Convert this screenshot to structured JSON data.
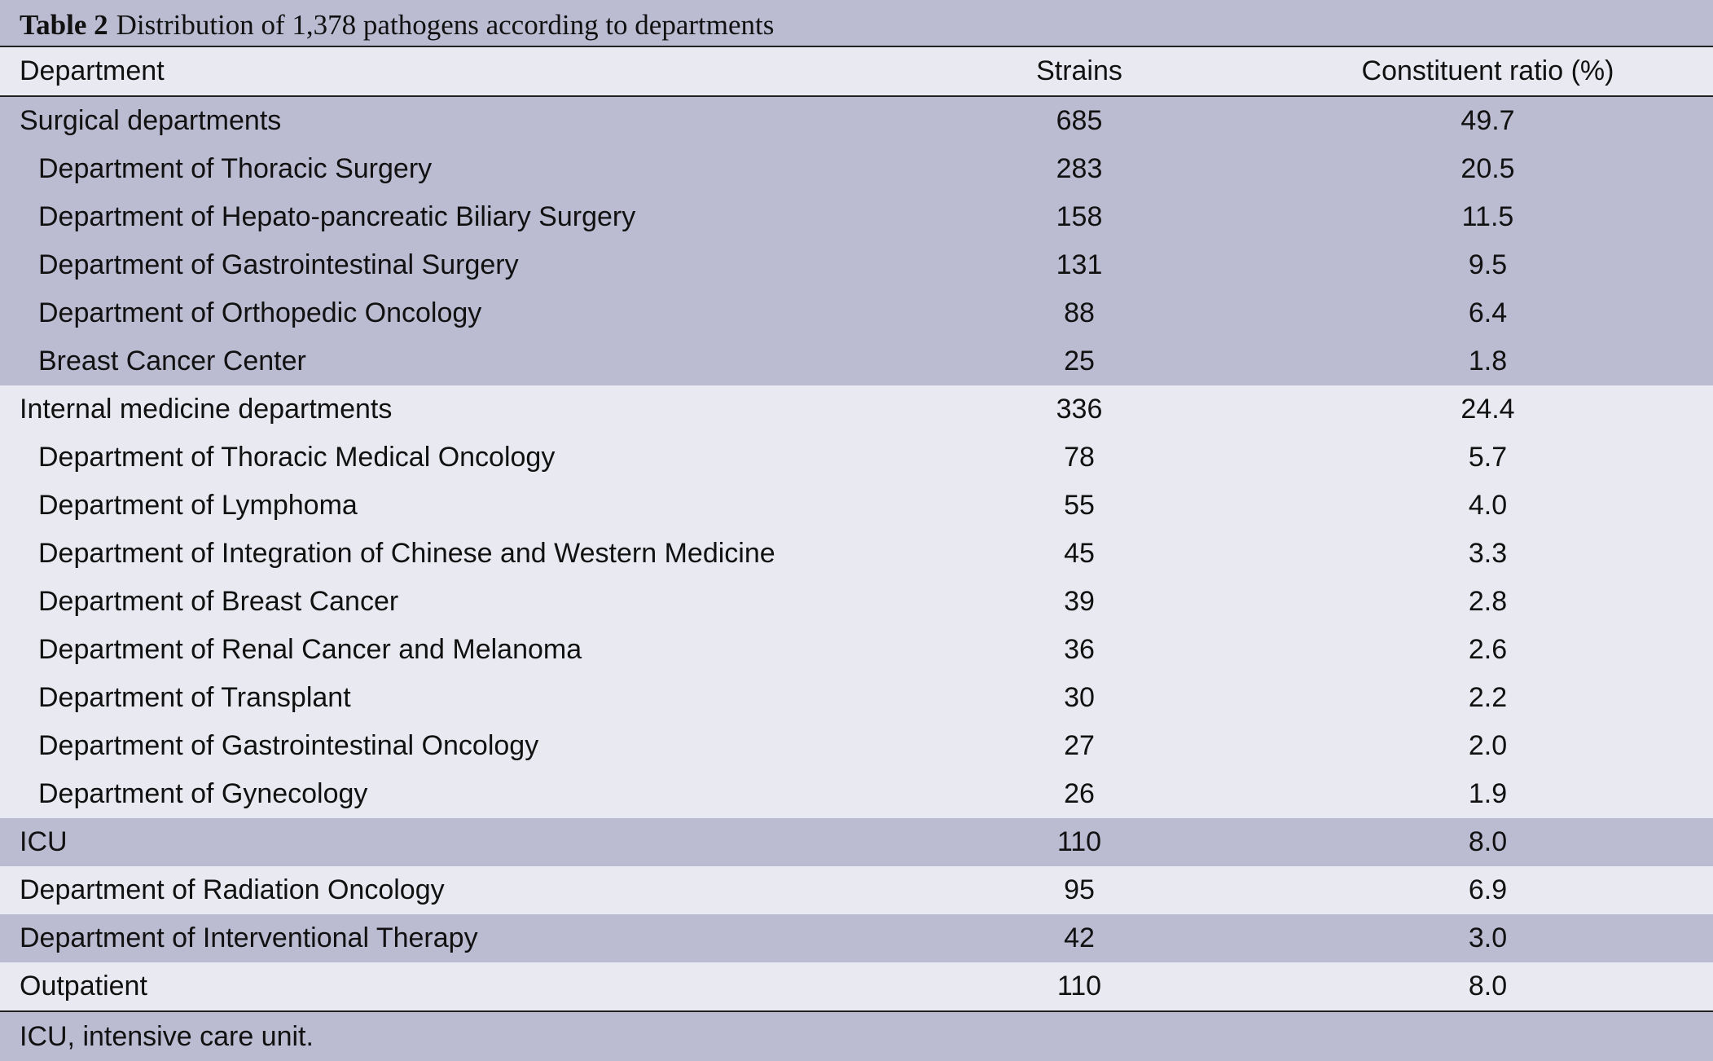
{
  "caption": {
    "label": "Table 2",
    "title": "Distribution of 1,378 pathogens according to departments"
  },
  "table": {
    "columns": [
      "Department",
      "Strains",
      "Constituent ratio (%)"
    ],
    "rows": [
      {
        "name": "Surgical departments",
        "strains": "685",
        "ratio": "49.7",
        "indent": false,
        "group": 0
      },
      {
        "name": "Department of Thoracic Surgery",
        "strains": "283",
        "ratio": "20.5",
        "indent": true,
        "group": 0
      },
      {
        "name": "Department of Hepato-pancreatic Biliary Surgery",
        "strains": "158",
        "ratio": "11.5",
        "indent": true,
        "group": 0
      },
      {
        "name": "Department of Gastrointestinal Surgery",
        "strains": "131",
        "ratio": "9.5",
        "indent": true,
        "group": 0
      },
      {
        "name": "Department of Orthopedic Oncology",
        "strains": "88",
        "ratio": "6.4",
        "indent": true,
        "group": 0
      },
      {
        "name": "Breast Cancer Center",
        "strains": "25",
        "ratio": "1.8",
        "indent": true,
        "group": 0
      },
      {
        "name": "Internal medicine departments",
        "strains": "336",
        "ratio": "24.4",
        "indent": false,
        "group": 1
      },
      {
        "name": "Department of Thoracic Medical Oncology",
        "strains": "78",
        "ratio": "5.7",
        "indent": true,
        "group": 1
      },
      {
        "name": "Department of Lymphoma",
        "strains": "55",
        "ratio": "4.0",
        "indent": true,
        "group": 1
      },
      {
        "name": "Department of Integration of Chinese and Western Medicine",
        "strains": "45",
        "ratio": "3.3",
        "indent": true,
        "group": 1
      },
      {
        "name": "Department of Breast Cancer",
        "strains": "39",
        "ratio": "2.8",
        "indent": true,
        "group": 1
      },
      {
        "name": "Department of Renal Cancer and Melanoma",
        "strains": "36",
        "ratio": "2.6",
        "indent": true,
        "group": 1
      },
      {
        "name": "Department of Transplant",
        "strains": "30",
        "ratio": "2.2",
        "indent": true,
        "group": 1
      },
      {
        "name": "Department of Gastrointestinal Oncology",
        "strains": "27",
        "ratio": "2.0",
        "indent": true,
        "group": 1
      },
      {
        "name": "Department of Gynecology",
        "strains": "26",
        "ratio": "1.9",
        "indent": true,
        "group": 1
      },
      {
        "name": "ICU",
        "strains": "110",
        "ratio": "8.0",
        "indent": false,
        "group": 2
      },
      {
        "name": "Department of Radiation Oncology",
        "strains": "95",
        "ratio": "6.9",
        "indent": false,
        "group": 3
      },
      {
        "name": "Department of Interventional Therapy",
        "strains": "42",
        "ratio": "3.0",
        "indent": false,
        "group": 4
      },
      {
        "name": "Outpatient",
        "strains": "110",
        "ratio": "8.0",
        "indent": false,
        "group": 5
      }
    ]
  },
  "footnote": "ICU, intensive care unit.",
  "colors": {
    "shade_dark": "#bbbbd2",
    "shade_light": "#e9e9f2",
    "rule": "#222222"
  }
}
